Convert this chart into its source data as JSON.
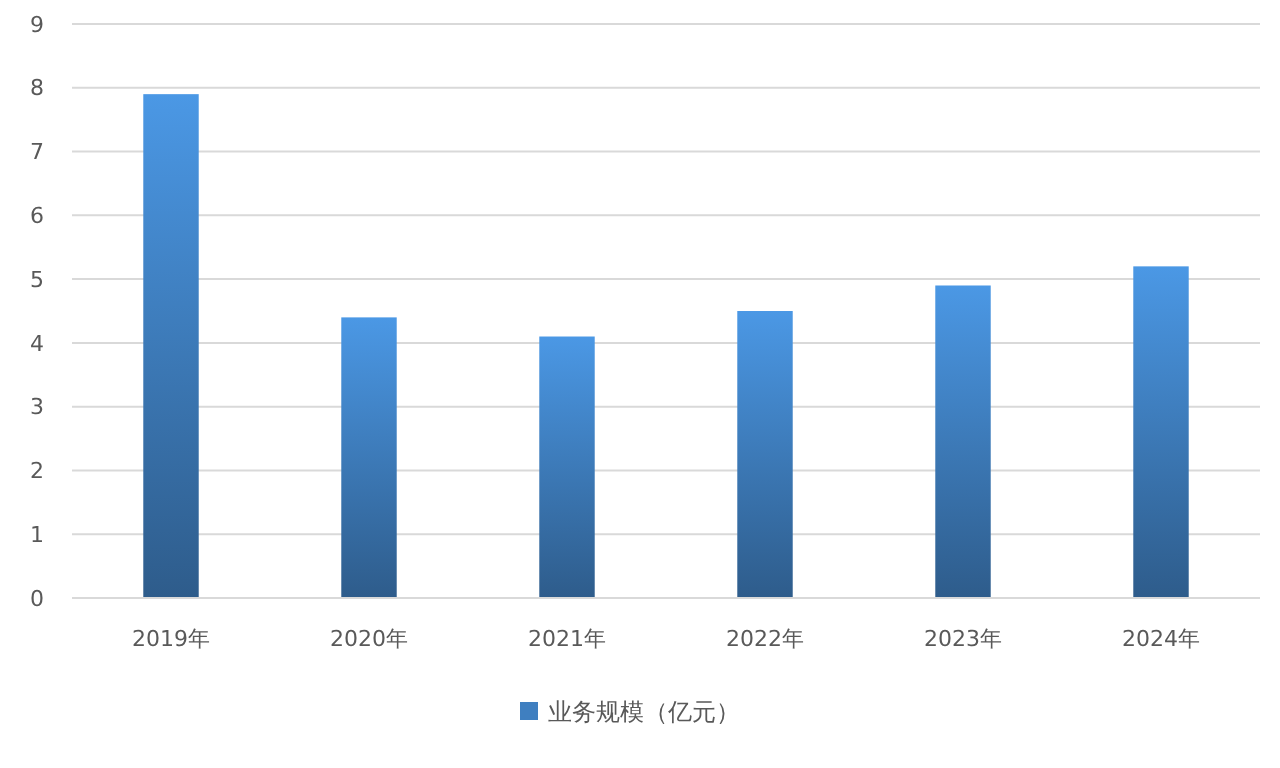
{
  "chart_data": {
    "type": "bar",
    "categories": [
      "2019年",
      "2020年",
      "2021年",
      "2022年",
      "2023年",
      "2024年"
    ],
    "series": [
      {
        "name": "业务规模（亿元）",
        "color": "#3f7fc0",
        "values": [
          7.9,
          4.4,
          4.1,
          4.5,
          4.9,
          5.2
        ]
      }
    ],
    "ylim": [
      0,
      9
    ],
    "yticks": [
      0,
      1,
      2,
      3,
      4,
      5,
      6,
      7,
      8,
      9
    ],
    "grid": "y",
    "legend": "bottom"
  }
}
